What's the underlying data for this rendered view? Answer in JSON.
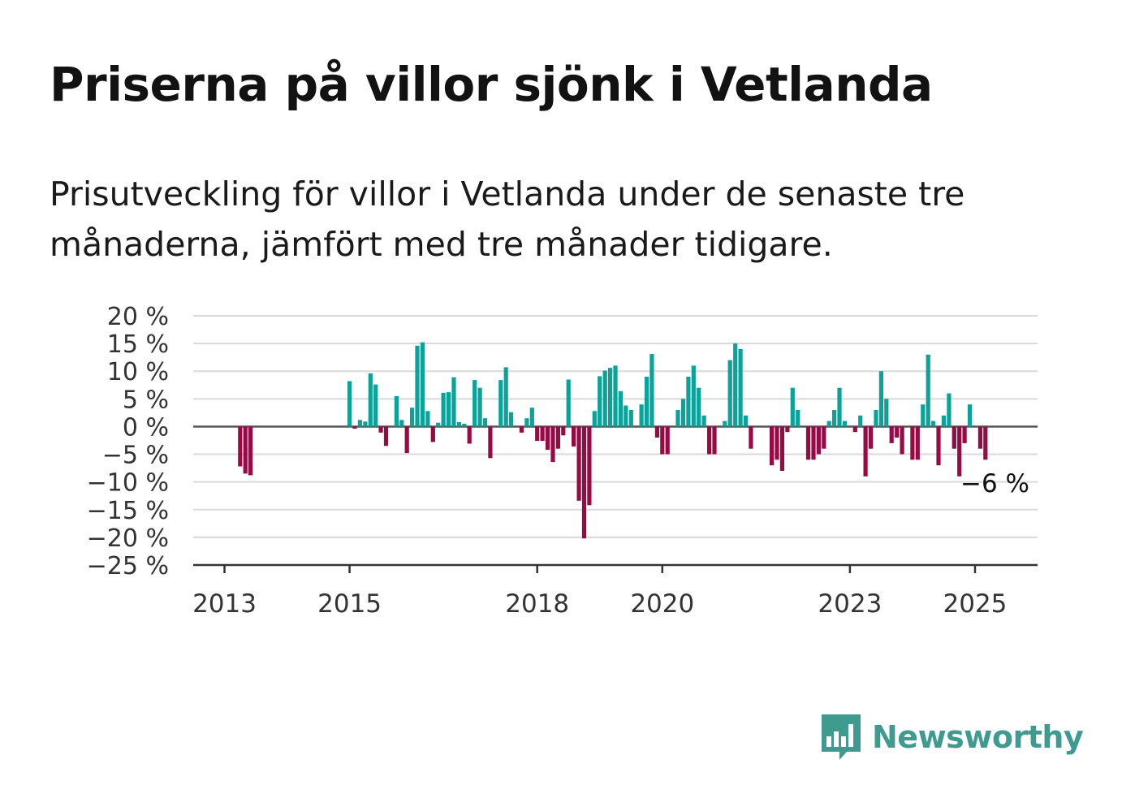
{
  "title": "Priserna på villor sjönk i Vetlanda",
  "subtitle": "Prisutveckling för villor i Vetlanda under de senaste tre månaderna, jämfört med tre månader tidigare.",
  "brand": {
    "name": "Newsworthy",
    "icon": "newsworthy-bar-chart-logo-icon",
    "color": "#3f9a8f"
  },
  "colors": {
    "positive": "#0aa39a",
    "negative": "#990a45",
    "grid": "#d9d9d9",
    "baseline": "#555555"
  },
  "chart_data": {
    "type": "bar",
    "title": "Priserna på villor sjönk i Vetlanda",
    "xlabel": "",
    "ylabel": "",
    "unit": "%",
    "ylim": [
      -25,
      20
    ],
    "yticks": [
      20,
      15,
      10,
      5,
      0,
      -5,
      -10,
      -15,
      -20,
      -25
    ],
    "ytick_labels": [
      "20 %",
      "15 %",
      "10 %",
      "5 %",
      "0 %",
      "−5 %",
      "−10 %",
      "−15 %",
      "−20 %",
      "−25 %"
    ],
    "xticks": [
      "2013",
      "2015",
      "2018",
      "2020",
      "2023",
      "2025"
    ],
    "grid": true,
    "last_value_label": "−6 %",
    "x": [
      "2013-04",
      "2013-05",
      "2013-06",
      "2015-01",
      "2015-02",
      "2015-03",
      "2015-04",
      "2015-05",
      "2015-06",
      "2015-07",
      "2015-08",
      "2015-09",
      "2015-10",
      "2015-11",
      "2015-12",
      "2016-01",
      "2016-02",
      "2016-03",
      "2016-04",
      "2016-05",
      "2016-06",
      "2016-07",
      "2016-08",
      "2016-09",
      "2016-10",
      "2016-11",
      "2016-12",
      "2017-01",
      "2017-02",
      "2017-03",
      "2017-04",
      "2017-05",
      "2017-06",
      "2017-07",
      "2017-08",
      "2017-09",
      "2017-10",
      "2017-11",
      "2017-12",
      "2018-01",
      "2018-02",
      "2018-03",
      "2018-04",
      "2018-05",
      "2018-06",
      "2018-07",
      "2018-08",
      "2018-09",
      "2018-10",
      "2018-11",
      "2018-12",
      "2019-01",
      "2019-02",
      "2019-03",
      "2019-04",
      "2019-05",
      "2019-06",
      "2019-07",
      "2019-08",
      "2019-09",
      "2019-10",
      "2019-11",
      "2019-12",
      "2020-01",
      "2020-02",
      "2020-03",
      "2020-04",
      "2020-05",
      "2020-06",
      "2020-07",
      "2020-08",
      "2020-09",
      "2020-10",
      "2020-11",
      "2020-12",
      "2021-01",
      "2021-02",
      "2021-03",
      "2021-04",
      "2021-05",
      "2021-06",
      "2021-07",
      "2021-08",
      "2021-09",
      "2021-10",
      "2021-11",
      "2021-12",
      "2022-01",
      "2022-02",
      "2022-03",
      "2022-04",
      "2022-05",
      "2022-06",
      "2022-07",
      "2022-08",
      "2022-09",
      "2022-10",
      "2022-11",
      "2022-12",
      "2023-01",
      "2023-02",
      "2023-03",
      "2023-04",
      "2023-05",
      "2023-06",
      "2023-07",
      "2023-08",
      "2023-09",
      "2023-10",
      "2023-11",
      "2023-12",
      "2024-01",
      "2024-02",
      "2024-03",
      "2024-04",
      "2024-05",
      "2024-06",
      "2024-07",
      "2024-08",
      "2024-09",
      "2024-10",
      "2024-11",
      "2024-12",
      "2025-01",
      "2025-02",
      "2025-03"
    ],
    "values": [
      -7.2,
      -8.5,
      -8.8,
      8.2,
      -0.4,
      1.2,
      0.9,
      9.6,
      7.6,
      -1.1,
      -3.5,
      0,
      5.5,
      1.2,
      -4.8,
      3.4,
      14.6,
      15.2,
      2.8,
      -2.8,
      0.7,
      6.1,
      6.2,
      8.9,
      0.8,
      0.5,
      -3.1,
      8.4,
      7.0,
      1.5,
      -5.7,
      0,
      8.4,
      10.7,
      2.6,
      0,
      -1.1,
      1.5,
      3.4,
      -2.6,
      -2.6,
      -4.2,
      -6.4,
      -4.0,
      -1.6,
      8.5,
      -3.6,
      -13.4,
      -20.2,
      -14.2,
      2.8,
      9.1,
      10.1,
      10.6,
      11.0,
      6.4,
      3.8,
      3.0,
      0,
      4.0,
      9.0,
      13.1,
      -2.0,
      -5.0,
      -5.0,
      0,
      3.0,
      5.0,
      9.0,
      11.0,
      7.0,
      2.0,
      -5.0,
      -5.0,
      0,
      1.0,
      12.0,
      15.0,
      14.0,
      2.0,
      -4.0,
      0,
      0,
      0,
      -7.0,
      -6.0,
      -8.0,
      -1.0,
      7.0,
      3.0,
      0,
      -6.0,
      -6.0,
      -5.0,
      -4.0,
      1.0,
      3.0,
      7.0,
      1.0,
      0,
      -1.0,
      2.0,
      -9.0,
      -4.0,
      3.0,
      10.0,
      5.0,
      -3.0,
      -2.0,
      -5.0,
      0,
      -6.0,
      -6.0,
      4.0,
      13.0,
      1.0,
      -7.0,
      2.0,
      6.0,
      -4.0,
      -9.0,
      -3.0,
      4.0,
      0,
      -4.0,
      -6.0
    ]
  }
}
